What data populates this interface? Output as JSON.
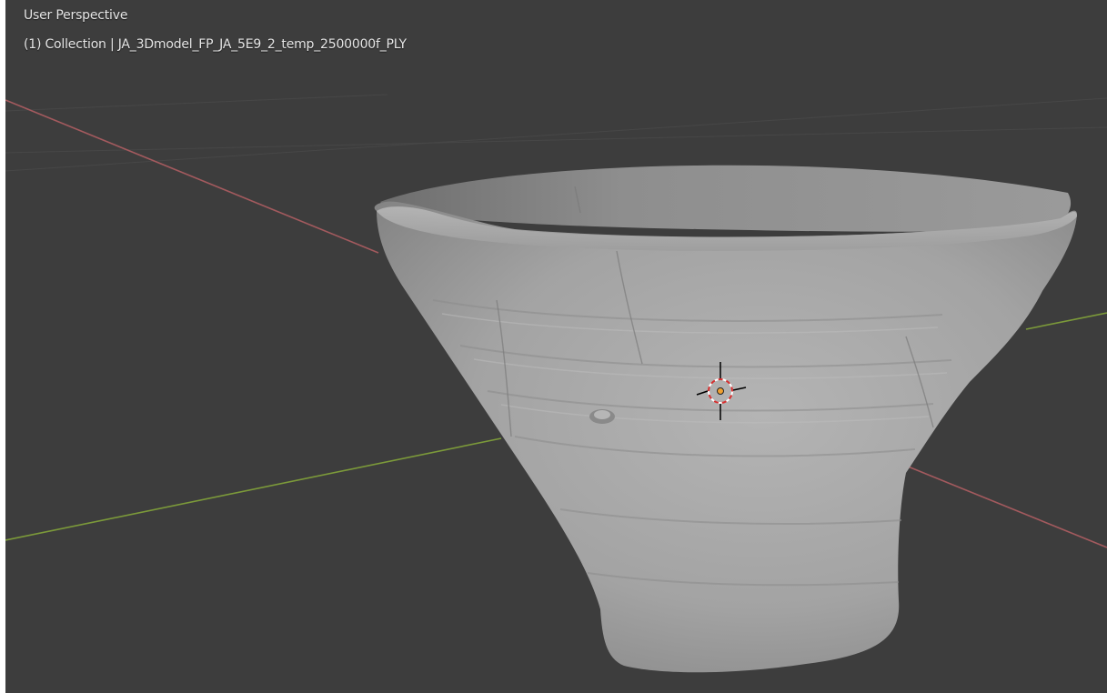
{
  "viewport": {
    "view_name": "User Perspective",
    "object_info": "(1) Collection | JA_3Dmodel_FP_JA_5E9_2_temp_2500000f_PLY"
  },
  "scene": {
    "object_icon": "pottery-bowl-mesh",
    "origin_icon": "3d-cursor-icon",
    "x_axis_color": "#a35a5e",
    "y_axis_color": "#7c9a3a",
    "background_color": "#3d3d3d",
    "mesh_color": "#a9a9a9"
  }
}
